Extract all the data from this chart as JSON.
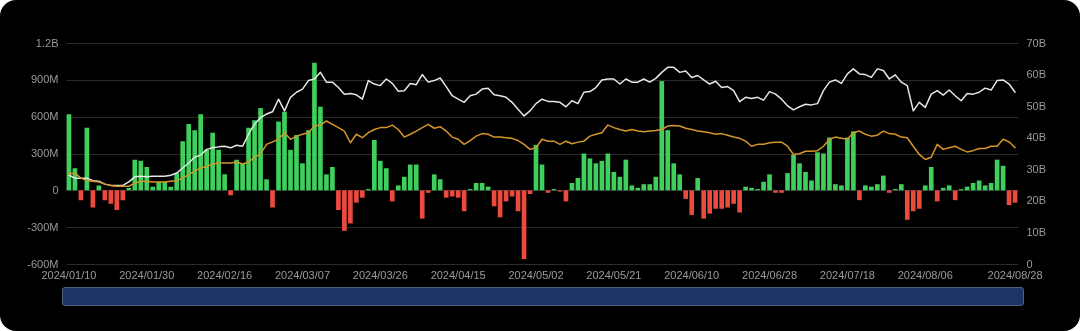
{
  "chart_data": {
    "type": "bar",
    "categories": [
      "2024/01/10",
      null,
      null,
      null,
      null,
      null,
      null,
      null,
      null,
      null,
      null,
      null,
      null,
      "2024/01/30",
      null,
      null,
      null,
      null,
      null,
      null,
      null,
      null,
      null,
      null,
      null,
      null,
      "2024/02/16",
      null,
      null,
      null,
      null,
      null,
      null,
      null,
      null,
      null,
      null,
      null,
      null,
      "2024/03/07",
      null,
      null,
      null,
      null,
      null,
      null,
      null,
      null,
      null,
      null,
      null,
      null,
      "2024/03/26",
      null,
      null,
      null,
      null,
      null,
      null,
      null,
      null,
      null,
      null,
      null,
      null,
      "2024/04/15",
      null,
      null,
      null,
      null,
      null,
      null,
      null,
      null,
      null,
      null,
      null,
      null,
      "2024/05/02",
      null,
      null,
      null,
      null,
      null,
      null,
      null,
      null,
      null,
      null,
      null,
      null,
      "2024/05/21",
      null,
      null,
      null,
      null,
      null,
      null,
      null,
      null,
      null,
      null,
      null,
      null,
      "2024/06/10",
      null,
      null,
      null,
      null,
      null,
      null,
      null,
      null,
      null,
      null,
      null,
      null,
      "2024/06/28",
      null,
      null,
      null,
      null,
      null,
      null,
      null,
      null,
      null,
      null,
      null,
      null,
      "2024/07/18",
      null,
      null,
      null,
      null,
      null,
      null,
      null,
      null,
      null,
      null,
      null,
      null,
      "2024/08/06",
      null,
      null,
      null,
      null,
      null,
      null,
      null,
      null,
      null,
      null,
      null,
      null,
      null,
      null,
      "2024/08/28"
    ],
    "series": [
      {
        "values": [
          620000000,
          180000000,
          -80000000,
          510000000,
          -140000000,
          40000000,
          -80000000,
          -110000000,
          -160000000,
          -80000000,
          20000000,
          250000000,
          240000000,
          190000000,
          30000000,
          70000000,
          70000000,
          30000000,
          140000000,
          400000000,
          540000000,
          490000000,
          620000000,
          330000000,
          470000000,
          330000000,
          130000000,
          -40000000,
          250000000,
          220000000,
          510000000,
          570000000,
          670000000,
          90000000,
          -140000000,
          560000000,
          640000000,
          330000000,
          450000000,
          220000000,
          490000000,
          1040000000,
          680000000,
          130000000,
          190000000,
          -160000000,
          -330000000,
          -270000000,
          -100000000,
          -60000000,
          10000000,
          410000000,
          240000000,
          180000000,
          -90000000,
          40000000,
          110000000,
          210000000,
          210000000,
          -230000000,
          -20000000,
          130000000,
          90000000,
          -60000000,
          -50000000,
          -60000000,
          -170000000,
          10000000,
          60000000,
          60000000,
          30000000,
          -130000000,
          -220000000,
          -90000000,
          -50000000,
          -170000000,
          -560000000,
          -30000000,
          370000000,
          210000000,
          -20000000,
          10000000,
          -10000000,
          -90000000,
          60000000,
          100000000,
          300000000,
          260000000,
          220000000,
          240000000,
          300000000,
          150000000,
          110000000,
          250000000,
          40000000,
          20000000,
          50000000,
          50000000,
          110000000,
          890000000,
          490000000,
          220000000,
          130000000,
          -70000000,
          -200000000,
          100000000,
          -230000000,
          -190000000,
          -150000000,
          -150000000,
          -140000000,
          -110000000,
          -180000000,
          30000000,
          20000000,
          10000000,
          70000000,
          130000000,
          -20000000,
          -20000000,
          140000000,
          290000000,
          220000000,
          150000000,
          80000000,
          310000000,
          300000000,
          430000000,
          50000000,
          40000000,
          430000000,
          480000000,
          -80000000,
          40000000,
          30000000,
          50000000,
          120000000,
          -20000000,
          10000000,
          50000000,
          -240000000,
          -170000000,
          -150000000,
          40000000,
          190000000,
          -90000000,
          20000000,
          40000000,
          -80000000,
          10000000,
          30000000,
          60000000,
          80000000,
          40000000,
          60000000,
          250000000,
          200000000,
          -120000000,
          -100000000
        ],
        "colors": [
          "#3ecf5c",
          "#3ecf5c",
          "#eb4a3f",
          "#3ecf5c",
          "#eb4a3f",
          "#3ecf5c",
          "#eb4a3f",
          "#eb4a3f",
          "#eb4a3f",
          "#eb4a3f",
          "#3ecf5c",
          "#3ecf5c",
          "#3ecf5c",
          "#3ecf5c",
          "#3ecf5c",
          "#3ecf5c",
          "#3ecf5c",
          "#3ecf5c",
          "#3ecf5c",
          "#3ecf5c",
          "#3ecf5c",
          "#3ecf5c",
          "#3ecf5c",
          "#3ecf5c",
          "#3ecf5c",
          "#3ecf5c",
          "#3ecf5c",
          "#eb4a3f",
          "#3ecf5c",
          "#3ecf5c",
          "#3ecf5c",
          "#3ecf5c",
          "#3ecf5c",
          "#3ecf5c",
          "#eb4a3f",
          "#3ecf5c",
          "#3ecf5c",
          "#3ecf5c",
          "#3ecf5c",
          "#3ecf5c",
          "#3ecf5c",
          "#3ecf5c",
          "#3ecf5c",
          "#3ecf5c",
          "#3ecf5c",
          "#eb4a3f",
          "#eb4a3f",
          "#eb4a3f",
          "#eb4a3f",
          "#eb4a3f",
          "#3ecf5c",
          "#3ecf5c",
          "#3ecf5c",
          "#3ecf5c",
          "#eb4a3f",
          "#3ecf5c",
          "#3ecf5c",
          "#3ecf5c",
          "#3ecf5c",
          "#eb4a3f",
          "#eb4a3f",
          "#3ecf5c",
          "#3ecf5c",
          "#eb4a3f",
          "#eb4a3f",
          "#eb4a3f",
          "#eb4a3f",
          "#3ecf5c",
          "#3ecf5c",
          "#3ecf5c",
          "#3ecf5c",
          "#eb4a3f",
          "#eb4a3f",
          "#eb4a3f",
          "#eb4a3f",
          "#eb4a3f",
          "#eb4a3f",
          "#eb4a3f",
          "#3ecf5c",
          "#3ecf5c",
          "#eb4a3f",
          "#3ecf5c",
          "#eb4a3f",
          "#eb4a3f",
          "#3ecf5c",
          "#3ecf5c",
          "#3ecf5c",
          "#3ecf5c",
          "#3ecf5c",
          "#3ecf5c",
          "#3ecf5c",
          "#3ecf5c",
          "#3ecf5c",
          "#3ecf5c",
          "#3ecf5c",
          "#3ecf5c",
          "#3ecf5c",
          "#3ecf5c",
          "#3ecf5c",
          "#3ecf5c",
          "#3ecf5c",
          "#3ecf5c",
          "#3ecf5c",
          "#eb4a3f",
          "#eb4a3f",
          "#3ecf5c",
          "#eb4a3f",
          "#eb4a3f",
          "#eb4a3f",
          "#eb4a3f",
          "#eb4a3f",
          "#eb4a3f",
          "#eb4a3f",
          "#3ecf5c",
          "#3ecf5c",
          "#3ecf5c",
          "#3ecf5c",
          "#3ecf5c",
          "#eb4a3f",
          "#eb4a3f",
          "#3ecf5c",
          "#3ecf5c",
          "#3ecf5c",
          "#3ecf5c",
          "#3ecf5c",
          "#3ecf5c",
          "#3ecf5c",
          "#3ecf5c",
          "#3ecf5c",
          "#3ecf5c",
          "#3ecf5c",
          "#3ecf5c",
          "#eb4a3f",
          "#3ecf5c",
          "#3ecf5c",
          "#3ecf5c",
          "#3ecf5c",
          "#eb4a3f",
          "#3ecf5c",
          "#3ecf5c",
          "#eb4a3f",
          "#eb4a3f",
          "#eb4a3f",
          "#3ecf5c",
          "#3ecf5c",
          "#eb4a3f",
          "#3ecf5c",
          "#3ecf5c",
          "#eb4a3f",
          "#3ecf5c",
          "#3ecf5c",
          "#3ecf5c",
          "#3ecf5c",
          "#3ecf5c",
          "#3ecf5c",
          "#3ecf5c",
          "#3ecf5c",
          "#eb4a3f",
          "#eb4a3f"
        ]
      },
      {
        "type": "line",
        "axis": "y2",
        "color": "#e6e6e6",
        "values": [
          28.1,
          27.2,
          27.2,
          27.2,
          26.4,
          26.2,
          25.3,
          24.9,
          24.9,
          24.9,
          26.0,
          27.6,
          27.8,
          27.6,
          27.8,
          27.8,
          27.8,
          28.1,
          28.8,
          30.4,
          32.0,
          33.8,
          34.5,
          36.3,
          36.8,
          37.1,
          37.3,
          36.8,
          37.6,
          37.3,
          41.1,
          44.3,
          46.4,
          47.5,
          48.2,
          52.2,
          48.5,
          52.8,
          54.4,
          55.4,
          58.1,
          58.6,
          60.7,
          57.6,
          57.6,
          55.9,
          53.8,
          54.0,
          53.6,
          52.2,
          58.1,
          57.0,
          56.5,
          58.6,
          57.2,
          54.7,
          54.9,
          57.2,
          56.8,
          60.0,
          57.6,
          58.1,
          58.9,
          56.2,
          53.3,
          52.2,
          51.2,
          53.3,
          53.8,
          55.4,
          55.7,
          53.6,
          53.3,
          52.8,
          51.2,
          49.0,
          46.9,
          48.5,
          50.8,
          52.2,
          51.5,
          51.5,
          51.2,
          49.8,
          51.7,
          50.8,
          54.4,
          54.6,
          55.9,
          58.3,
          58.6,
          58.6,
          57.0,
          58.6,
          57.6,
          57.6,
          58.6,
          57.6,
          58.8,
          60.7,
          62.3,
          62.3,
          60.7,
          61.1,
          59.1,
          59.7,
          58.3,
          57.0,
          57.9,
          55.9,
          56.2,
          54.9,
          51.4,
          52.8,
          52.4,
          52.8,
          51.9,
          54.6,
          53.8,
          52.2,
          50.1,
          48.8,
          49.8,
          50.6,
          50.4,
          50.8,
          54.9,
          57.6,
          58.3,
          57.2,
          60.2,
          61.8,
          60.2,
          60.0,
          59.1,
          61.8,
          61.3,
          58.6,
          59.9,
          57.6,
          56.5,
          48.5,
          51.2,
          49.6,
          53.8,
          54.9,
          53.5,
          55.1,
          53.3,
          51.7,
          54.0,
          53.8,
          54.4,
          55.7,
          55.1,
          58.1,
          58.3,
          57.0,
          54.4
        ]
      },
      {
        "type": "line",
        "axis": "y2",
        "color": "#d4952a",
        "values": [
          28.5,
          28.8,
          27.2,
          26.4,
          26.2,
          26.0,
          25.3,
          24.9,
          24.6,
          24.6,
          24.6,
          25.6,
          26.2,
          26.2,
          26.0,
          26.0,
          26.0,
          26.2,
          26.4,
          27.2,
          28.3,
          29.4,
          30.4,
          30.9,
          31.7,
          32.0,
          32.0,
          32.0,
          32.3,
          31.7,
          32.3,
          33.8,
          34.9,
          37.9,
          38.7,
          39.5,
          41.6,
          39.5,
          40.5,
          41.1,
          41.6,
          43.7,
          44.0,
          45.3,
          44.2,
          43.2,
          42.1,
          38.4,
          41.1,
          40.0,
          41.6,
          42.6,
          43.2,
          43.2,
          44.0,
          42.6,
          40.2,
          41.1,
          42.1,
          43.2,
          44.2,
          43.0,
          43.5,
          42.1,
          40.2,
          39.5,
          37.9,
          39.1,
          40.5,
          41.3,
          41.1,
          40.2,
          40.2,
          40.0,
          39.8,
          39.1,
          37.9,
          36.3,
          36.8,
          39.5,
          38.9,
          38.9,
          37.9,
          38.9,
          38.1,
          38.6,
          38.9,
          40.5,
          41.1,
          41.6,
          44.0,
          43.2,
          42.6,
          42.1,
          42.6,
          42.1,
          41.9,
          42.1,
          42.3,
          42.6,
          43.7,
          43.9,
          43.7,
          43.0,
          42.6,
          42.1,
          41.9,
          41.6,
          41.1,
          41.3,
          40.8,
          40.2,
          39.8,
          38.9,
          37.3,
          37.9,
          37.9,
          38.4,
          38.6,
          38.6,
          37.3,
          34.7,
          34.9,
          35.7,
          35.7,
          35.9,
          37.3,
          39.5,
          40.2,
          39.8,
          39.5,
          41.6,
          42.1,
          41.1,
          40.5,
          40.8,
          42.1,
          41.3,
          41.1,
          40.2,
          40.0,
          37.3,
          34.7,
          33.1,
          33.8,
          37.9,
          36.3,
          36.8,
          37.3,
          36.3,
          35.5,
          35.9,
          36.6,
          36.6,
          37.3,
          37.3,
          39.5,
          38.7,
          36.8
        ]
      }
    ],
    "ylim": [
      -600000000,
      1200000000
    ],
    "yticks": [
      {
        "value": -600000000,
        "label": "-600M"
      },
      {
        "value": -300000000,
        "label": "-300M"
      },
      0,
      {
        "value": 300000000,
        "label": "300M"
      },
      {
        "value": 600000000,
        "label": "600M"
      },
      {
        "value": 900000000,
        "label": "900M"
      },
      {
        "value": 1200000000,
        "label": "1.2B"
      }
    ],
    "y2lim": [
      0,
      70
    ],
    "y2ticks": [
      0,
      {
        "value": 10,
        "label": "10B"
      },
      {
        "value": 20,
        "label": "20B"
      },
      {
        "value": 30,
        "label": "30B"
      },
      {
        "value": 40,
        "label": "40B"
      },
      {
        "value": 50,
        "label": "50B"
      },
      {
        "value": 60,
        "label": "60B"
      },
      {
        "value": 70,
        "label": "70B"
      }
    ],
    "grid": "y"
  }
}
